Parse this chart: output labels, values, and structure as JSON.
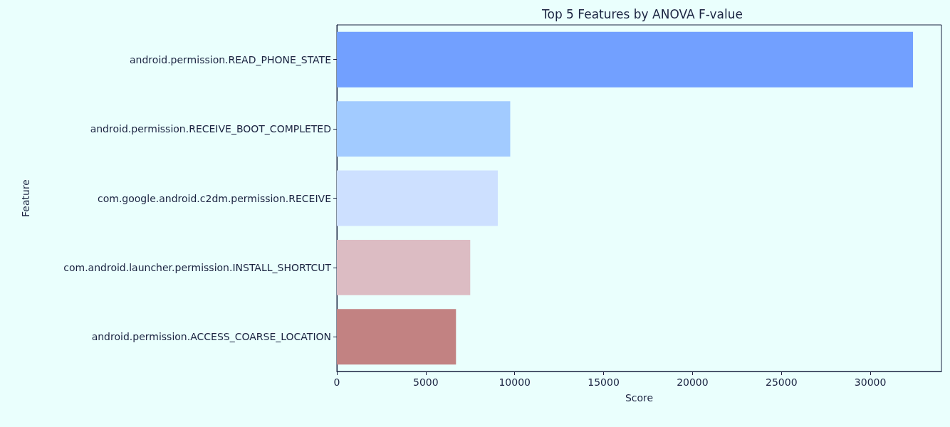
{
  "chart_data": {
    "type": "bar",
    "orientation": "horizontal",
    "title": "Top 5 Features by ANOVA F-value",
    "xlabel": "Score",
    "ylabel": "Feature",
    "categories": [
      "android.permission.READ_PHONE_STATE",
      "android.permission.RECEIVE_BOOT_COMPLETED",
      "com.google.android.c2dm.permission.RECEIVE",
      "com.android.launcher.permission.INSTALL_SHORTCUT",
      "android.permission.ACCESS_COARSE_LOCATION"
    ],
    "values": [
      32400,
      9750,
      9050,
      7500,
      6700
    ],
    "colors": [
      "#72a0ff",
      "#a2cbff",
      "#cde0ff",
      "#dcbcc3",
      "#c28282"
    ],
    "xlim": [
      0,
      34000
    ],
    "xticks": [
      0,
      5000,
      10000,
      15000,
      20000,
      25000,
      30000
    ],
    "grid": false
  }
}
